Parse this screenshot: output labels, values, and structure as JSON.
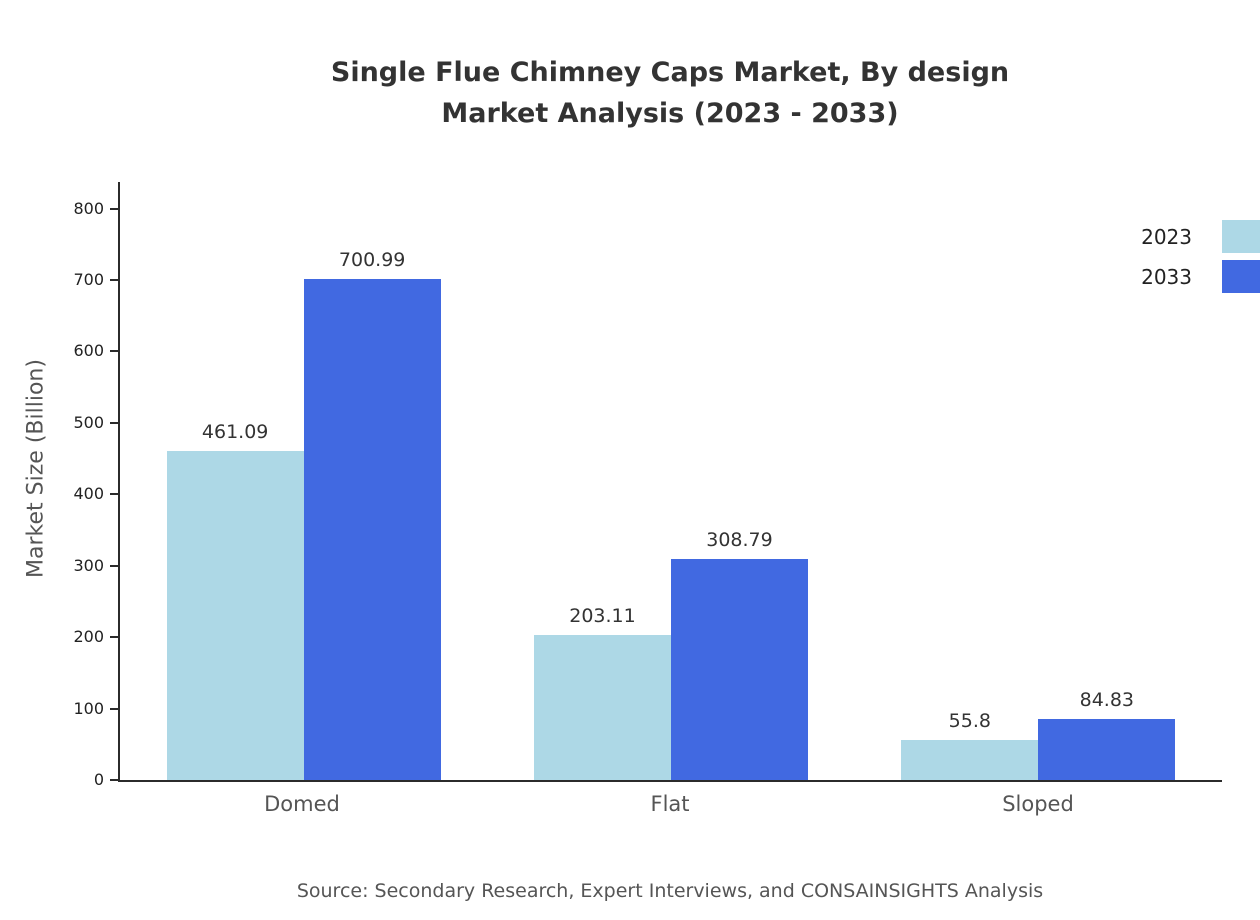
{
  "title": {
    "line1": "Single Flue Chimney Caps Market, By design",
    "line2": "Market Analysis (2023 - 2033)"
  },
  "source": "Source: Secondary Research, Expert Interviews, and CONSAINSIGHTS Analysis",
  "colors": {
    "series_2023": "#ADD8E6",
    "series_2033": "#4169E1",
    "title_text": "#333333",
    "axis_text": "#222222",
    "muted_text": "#555555"
  },
  "chart_data": {
    "type": "bar",
    "categories": [
      "Domed",
      "Flat",
      "Sloped"
    ],
    "series": [
      {
        "name": "2023",
        "color": "#ADD8E6",
        "values": [
          461.09,
          203.11,
          55.8
        ]
      },
      {
        "name": "2033",
        "color": "#4169E1",
        "values": [
          700.99,
          308.79,
          84.83
        ]
      }
    ],
    "title": "Single Flue Chimney Caps Market, By design Market Analysis (2023 - 2033)",
    "xlabel": "",
    "ylabel": "Market Size (Billion)",
    "ylim": [
      0,
      840
    ],
    "yticks": [
      0,
      100,
      200,
      300,
      400,
      500,
      600,
      700,
      800
    ],
    "grid": false,
    "legend_position": "top-right",
    "value_labels": true
  }
}
